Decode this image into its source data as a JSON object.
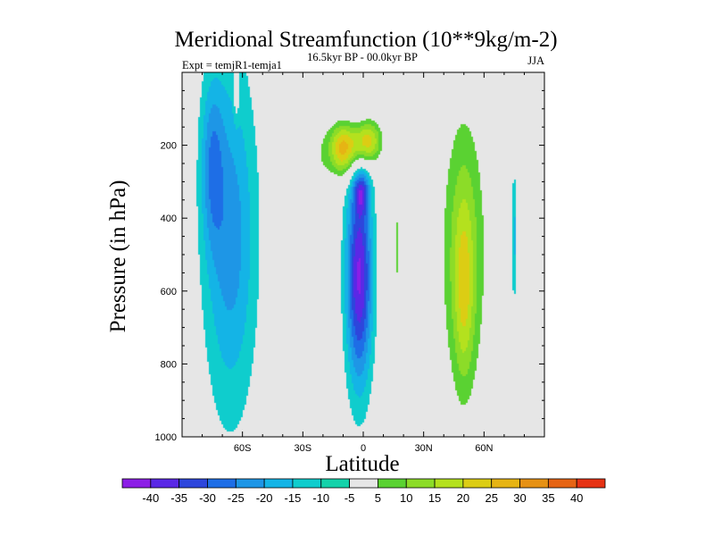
{
  "chart_data": {
    "type": "contour",
    "title": "Meridional Streamfunction (10**9kg/m-2)",
    "left_label": "Expt = temjR1-temja1",
    "center_label": "16.5kyr BP - 00.0kyr BP",
    "right_label": "JJA",
    "xlabel": "Latitude",
    "ylabel": "Pressure (in hPa)",
    "xlim": [
      -90,
      90
    ],
    "ylim": [
      1000,
      0
    ],
    "x_ticks": [
      {
        "value": -60,
        "label": "60S"
      },
      {
        "value": -30,
        "label": "30S"
      },
      {
        "value": 0,
        "label": "0"
      },
      {
        "value": 30,
        "label": "30N"
      },
      {
        "value": 60,
        "label": "60N"
      }
    ],
    "y_ticks": [
      {
        "value": 200,
        "label": "200"
      },
      {
        "value": 400,
        "label": "400"
      },
      {
        "value": 600,
        "label": "600"
      },
      {
        "value": 800,
        "label": "800"
      },
      {
        "value": 1000,
        "label": "1000"
      }
    ],
    "levels": [
      {
        "value": -40,
        "label": "-40",
        "color": "#8c1ee6"
      },
      {
        "value": -35,
        "label": "-35",
        "color": "#5a28e6"
      },
      {
        "value": -30,
        "label": "-30",
        "color": "#2d46dc"
      },
      {
        "value": -25,
        "label": "-25",
        "color": "#1e6ee6"
      },
      {
        "value": -20,
        "label": "-20",
        "color": "#1e96e6"
      },
      {
        "value": -15,
        "label": "-15",
        "color": "#14b4e6"
      },
      {
        "value": -10,
        "label": "-10",
        "color": "#0fcdcd"
      },
      {
        "value": -5,
        "label": "-5",
        "color": "#14d2aa"
      },
      {
        "value": 5,
        "label": "5",
        "color": "#e6e6e6"
      },
      {
        "value": 10,
        "label": "10",
        "color": "#5ad232"
      },
      {
        "value": 15,
        "label": "15",
        "color": "#8cdc28"
      },
      {
        "value": 20,
        "label": "20",
        "color": "#b4e11e"
      },
      {
        "value": 25,
        "label": "25",
        "color": "#dccd14"
      },
      {
        "value": 30,
        "label": "30",
        "color": "#e6b414"
      },
      {
        "value": 35,
        "label": "35",
        "color": "#e69114"
      },
      {
        "value": 40,
        "label": "40",
        "color": "#e66414"
      }
    ],
    "extra_colors": {
      "max": "#e63214",
      "background": "#e6e6e6"
    },
    "cells": [
      {
        "name": "southern-high-latitude-cell",
        "lat": -66,
        "p": 450,
        "lat_halfwidth": 14,
        "p_halfwidth": 520,
        "peak": -18
      },
      {
        "name": "southern-subcell-west",
        "lat": -75,
        "p": 250,
        "lat_halfwidth": 6,
        "p_halfwidth": 250,
        "peak": -14
      },
      {
        "name": "equatorial-cell-core",
        "lat": -2,
        "p": 560,
        "lat_halfwidth": 7,
        "p_halfwidth": 320,
        "peak": -36
      },
      {
        "name": "equatorial-cell-upper",
        "lat": -1,
        "p": 330,
        "lat_halfwidth": 4,
        "p_halfwidth": 60,
        "peak": -18
      },
      {
        "name": "upper-tropical-cell-west",
        "lat": -10,
        "p": 210,
        "lat_halfwidth": 8,
        "p_halfwidth": 80,
        "peak": 32
      },
      {
        "name": "upper-tropical-cell-east",
        "lat": 2,
        "p": 190,
        "lat_halfwidth": 8,
        "p_halfwidth": 70,
        "peak": 30
      },
      {
        "name": "tropical-positive-band",
        "lat": -22,
        "p": 500,
        "lat_halfwidth": 6,
        "p_halfwidth": 500,
        "peak": 10
      },
      {
        "name": "northern-strip",
        "lat": 17,
        "p": 480,
        "lat_halfwidth": 2,
        "p_halfwidth": 250,
        "peak": 11
      },
      {
        "name": "northern-mid-latitude-cell",
        "lat": 50,
        "p": 500,
        "lat_halfwidth": 14,
        "p_halfwidth": 500,
        "peak": 18
      },
      {
        "name": "northern-mid-latitude-core",
        "lat": 50,
        "p": 600,
        "lat_halfwidth": 5,
        "p_halfwidth": 260,
        "peak": 12
      },
      {
        "name": "northern-thin-negative",
        "lat": 75,
        "p": 450,
        "lat_halfwidth": 1.5,
        "p_halfwidth": 200,
        "peak": -12
      },
      {
        "name": "southern-upper-strip",
        "lat": -63,
        "p": 60,
        "lat_halfwidth": 1.5,
        "p_halfwidth": 80,
        "peak": 9
      }
    ]
  }
}
